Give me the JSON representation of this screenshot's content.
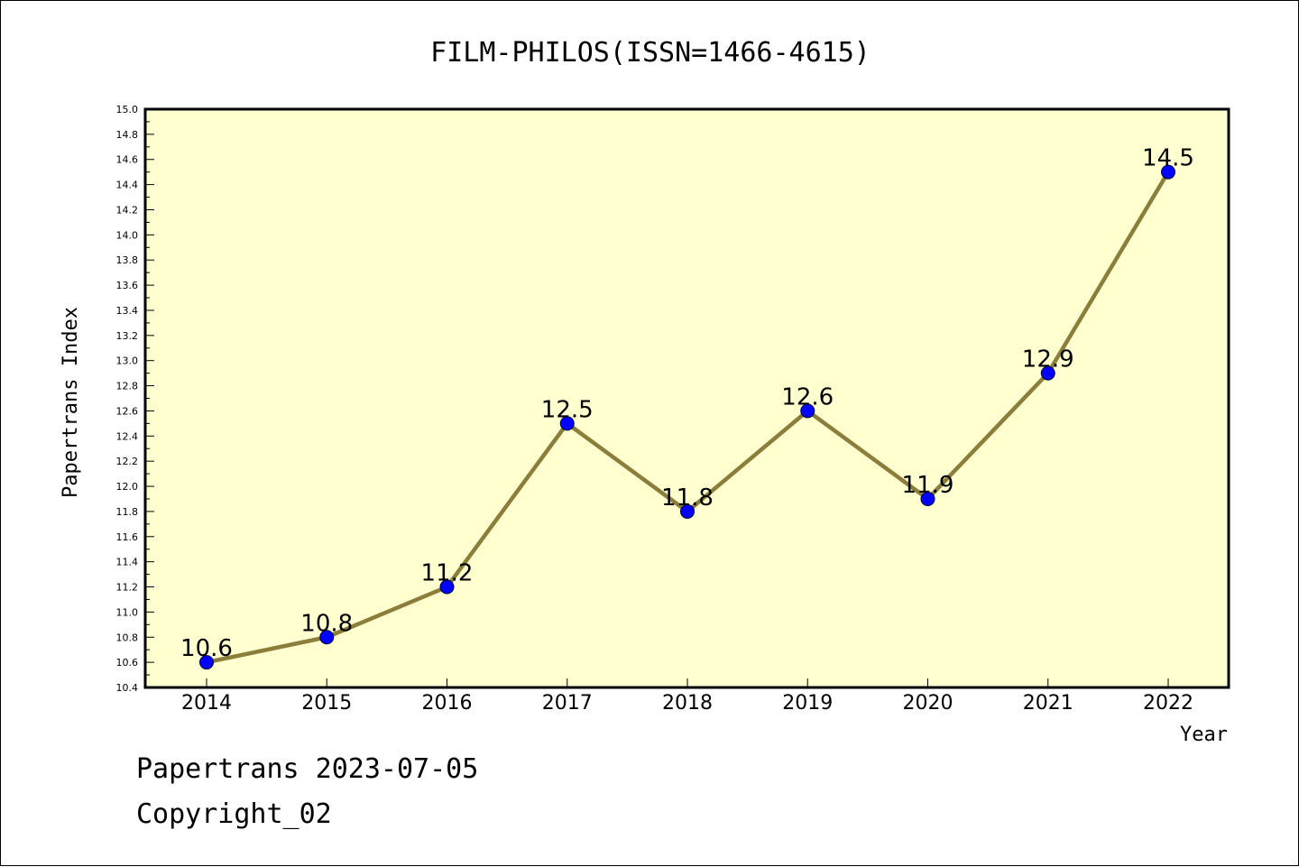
{
  "chart_data": {
    "type": "line",
    "title": "FILM-PHILOS(ISSN=1466-4615)",
    "xlabel": "Year",
    "ylabel": "Papertrans Index",
    "categories": [
      "2014",
      "2015",
      "2016",
      "2017",
      "2018",
      "2019",
      "2020",
      "2021",
      "2022"
    ],
    "series": [
      {
        "values": [
          10.6,
          10.8,
          11.2,
          12.5,
          11.8,
          12.6,
          11.9,
          12.9,
          14.5
        ]
      }
    ],
    "data_labels": [
      "10.6",
      "10.8",
      "11.2",
      "12.5",
      "11.8",
      "12.6",
      "11.9",
      "12.9",
      "14.5"
    ],
    "ylim": [
      10.4,
      15.0
    ],
    "y_ticks": [
      "10.4",
      "10.6",
      "10.8",
      "11.0",
      "11.2",
      "11.4",
      "11.6",
      "11.8",
      "12.0",
      "12.2",
      "12.4",
      "12.6",
      "12.8",
      "13.0",
      "13.2",
      "13.4",
      "13.6",
      "13.8",
      "14.0",
      "14.2",
      "14.4",
      "14.6",
      "14.8",
      "15.0"
    ],
    "grid": false,
    "colors": {
      "plot_background": "#ffffd0",
      "line": "#8b7d3a",
      "marker": "#0000ff"
    }
  },
  "footer": {
    "line1": "Papertrans 2023-07-05",
    "line2": "Copyright_02"
  }
}
